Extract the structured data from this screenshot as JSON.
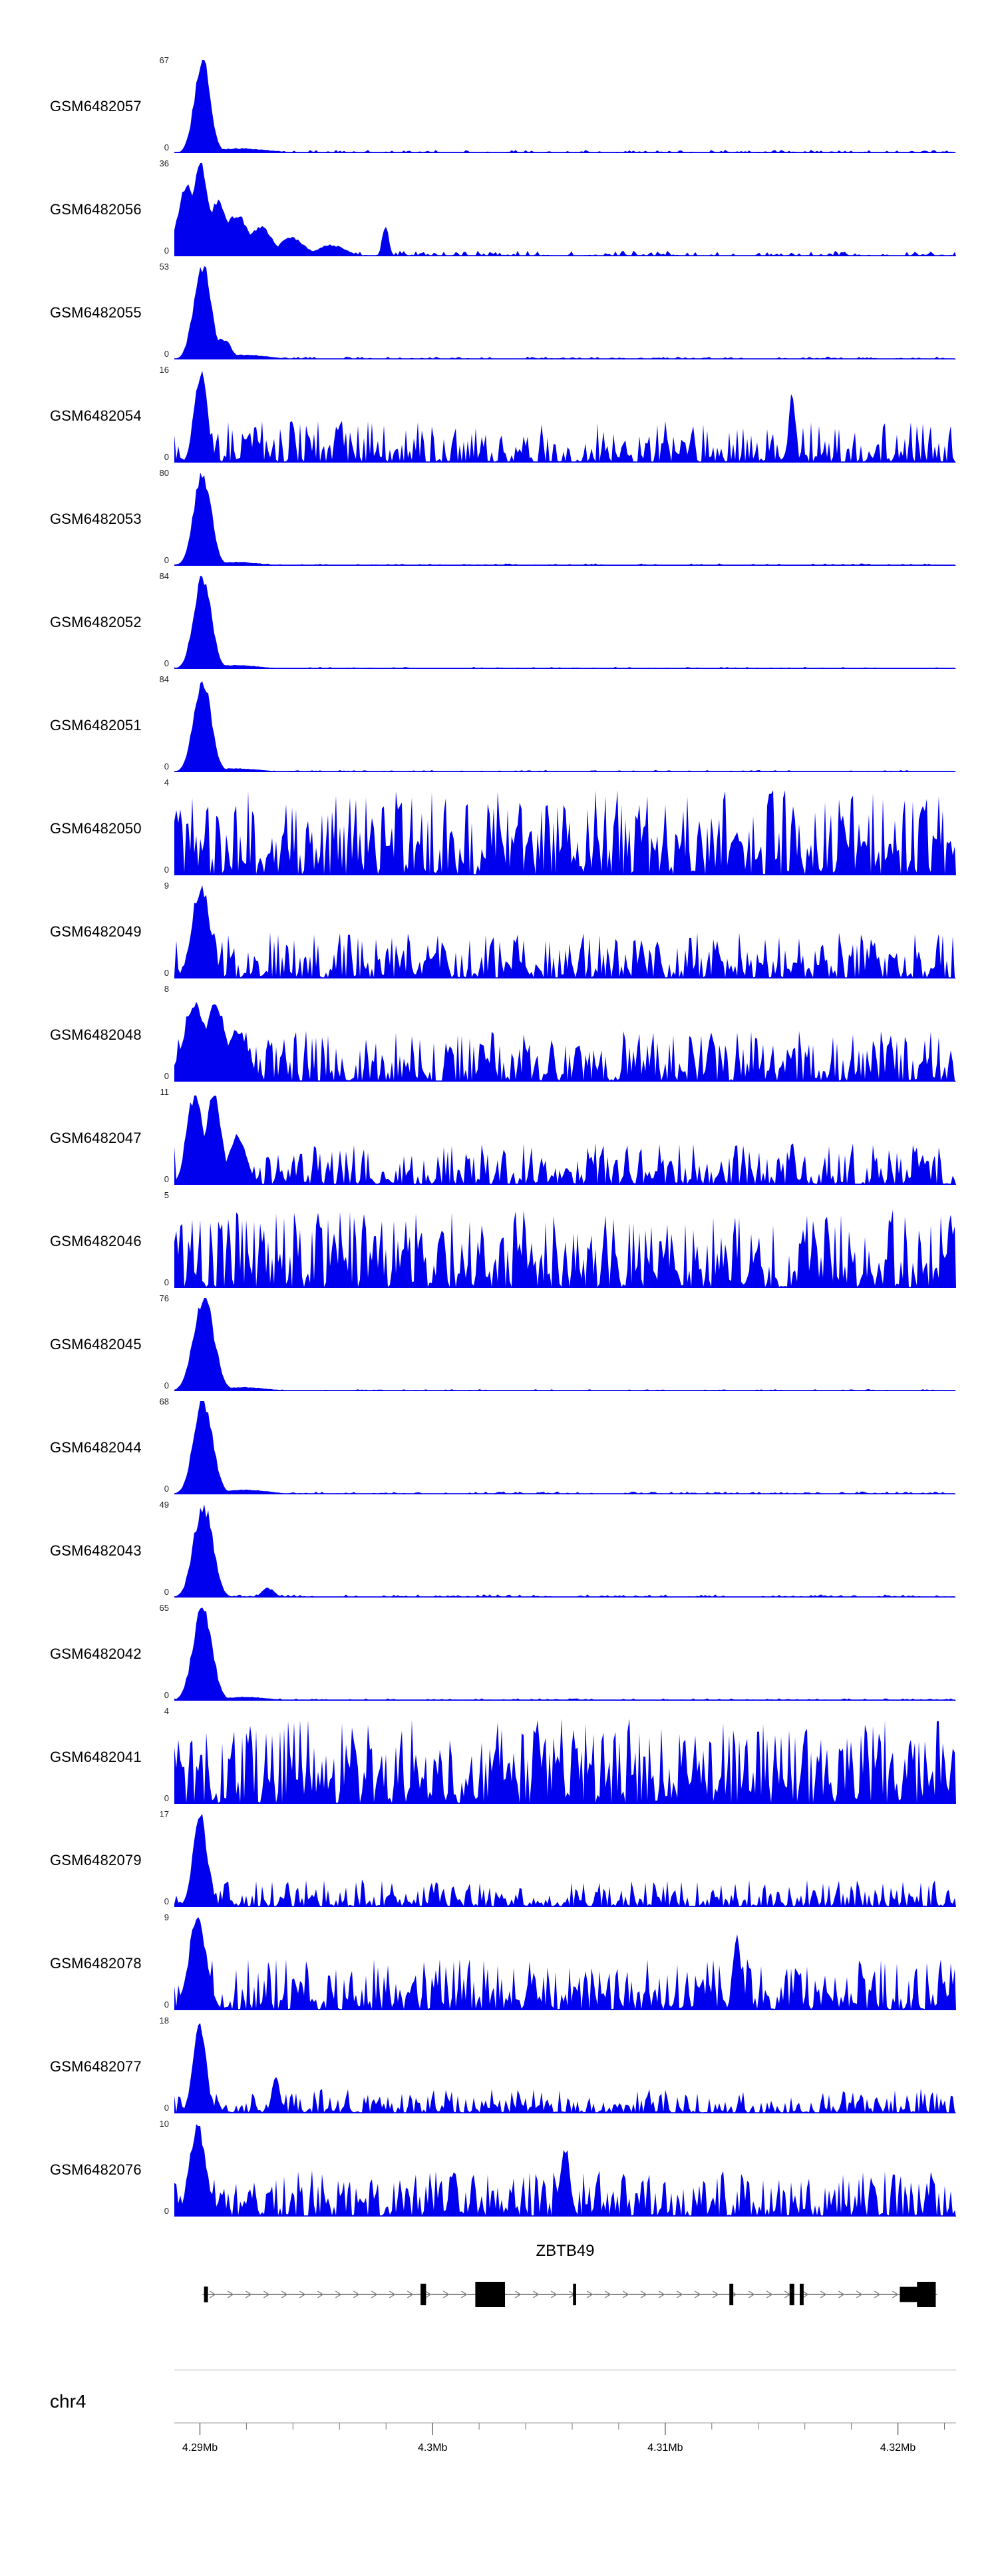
{
  "figure": {
    "gene_label": "ZBTB49",
    "chrom_label": "chr4"
  },
  "chart_data": {
    "type": "area",
    "title": "",
    "description": "Genome browser coverage signal tracks (blue filled area plots) for 21 GEO samples over the ZBTB49 locus on chr4, with a gene model track and a genomic coordinate ruler from 4.29Mb to 4.32Mb.",
    "signal_color": "#0000EE",
    "legend": "none",
    "grid": "off",
    "x_axis": {
      "chrom": "chr4",
      "unit": "Mb",
      "start_mb": 4.2889,
      "end_mb": 4.3225,
      "major_ticks_mb": [
        4.29,
        4.3,
        4.31,
        4.32
      ],
      "tick_labels": [
        "4.29Mb",
        "4.3Mb",
        "4.31Mb",
        "4.32Mb"
      ],
      "minor_tick_interval_mb": 0.002
    },
    "tracks": [
      {
        "label": "GSM6482057",
        "ymin": 0,
        "ymax": 67,
        "seed": 11,
        "noise": 0.035,
        "exp": 2.8,
        "peaks": [
          {
            "pos": 0.036,
            "h": 1,
            "w": 0.01
          },
          {
            "pos": 0.085,
            "h": 0.05,
            "w": 0.035
          }
        ]
      },
      {
        "label": "GSM6482056",
        "ymin": 0,
        "ymax": 36,
        "seed": 12,
        "noise": 0.06,
        "exp": 2.6,
        "peaks": [
          {
            "pos": 0.016,
            "h": 0.72,
            "w": 0.012
          },
          {
            "pos": 0.034,
            "h": 1,
            "w": 0.01
          },
          {
            "pos": 0.055,
            "h": 0.6,
            "w": 0.012
          },
          {
            "pos": 0.08,
            "h": 0.45,
            "w": 0.014
          },
          {
            "pos": 0.11,
            "h": 0.3,
            "w": 0.016
          },
          {
            "pos": 0.15,
            "h": 0.2,
            "w": 0.016
          },
          {
            "pos": 0.2,
            "h": 0.12,
            "w": 0.018
          },
          {
            "pos": 0.27,
            "h": 0.34,
            "w": 0.004
          }
        ]
      },
      {
        "label": "GSM6482055",
        "ymin": 0,
        "ymax": 53,
        "seed": 13,
        "noise": 0.03,
        "exp": 2.8,
        "peaks": [
          {
            "pos": 0.036,
            "h": 1,
            "w": 0.011
          },
          {
            "pos": 0.062,
            "h": 0.22,
            "w": 0.01
          },
          {
            "pos": 0.09,
            "h": 0.05,
            "w": 0.03
          }
        ]
      },
      {
        "label": "GSM6482054",
        "ymin": 0,
        "ymax": 16,
        "seed": 14,
        "noise": 0.45,
        "exp": 2.0,
        "peaks": [
          {
            "pos": 0.034,
            "h": 1,
            "w": 0.008
          },
          {
            "pos": 0.79,
            "h": 0.75,
            "w": 0.004
          }
        ]
      },
      {
        "label": "GSM6482053",
        "ymin": 0,
        "ymax": 80,
        "seed": 15,
        "noise": 0.025,
        "exp": 3,
        "peaks": [
          {
            "pos": 0.036,
            "h": 1,
            "w": 0.011
          },
          {
            "pos": 0.08,
            "h": 0.04,
            "w": 0.03
          }
        ]
      },
      {
        "label": "GSM6482052",
        "ymin": 0,
        "ymax": 84,
        "seed": 16,
        "noise": 0.022,
        "exp": 3,
        "peaks": [
          {
            "pos": 0.036,
            "h": 1,
            "w": 0.011
          },
          {
            "pos": 0.08,
            "h": 0.04,
            "w": 0.03
          }
        ]
      },
      {
        "label": "GSM6482051",
        "ymin": 0,
        "ymax": 84,
        "seed": 17,
        "noise": 0.022,
        "exp": 3,
        "peaks": [
          {
            "pos": 0.036,
            "h": 1,
            "w": 0.011
          },
          {
            "pos": 0.08,
            "h": 0.04,
            "w": 0.03
          }
        ]
      },
      {
        "label": "GSM6482050",
        "ymin": 0,
        "ymax": 4,
        "seed": 18,
        "noise": 0.92,
        "exp": 1.5,
        "peaks": []
      },
      {
        "label": "GSM6482049",
        "ymin": 0,
        "ymax": 9,
        "seed": 19,
        "noise": 0.5,
        "exp": 1.9,
        "peaks": [
          {
            "pos": 0.034,
            "h": 1,
            "w": 0.011
          }
        ]
      },
      {
        "label": "GSM6482048",
        "ymin": 0,
        "ymax": 8,
        "seed": 20,
        "noise": 0.55,
        "exp": 1.8,
        "peaks": [
          {
            "pos": 0.026,
            "h": 0.85,
            "w": 0.014
          },
          {
            "pos": 0.052,
            "h": 0.9,
            "w": 0.012
          },
          {
            "pos": 0.08,
            "h": 0.55,
            "w": 0.014
          }
        ]
      },
      {
        "label": "GSM6482047",
        "ymin": 0,
        "ymax": 11,
        "seed": 21,
        "noise": 0.45,
        "exp": 2.0,
        "peaks": [
          {
            "pos": 0.026,
            "h": 0.95,
            "w": 0.01
          },
          {
            "pos": 0.05,
            "h": 1,
            "w": 0.01
          },
          {
            "pos": 0.08,
            "h": 0.5,
            "w": 0.012
          }
        ]
      },
      {
        "label": "GSM6482046",
        "ymin": 0,
        "ymax": 5,
        "seed": 22,
        "noise": 0.85,
        "exp": 1.6,
        "peaks": []
      },
      {
        "label": "GSM6482045",
        "ymin": 0,
        "ymax": 76,
        "seed": 23,
        "noise": 0.022,
        "exp": 3,
        "peaks": [
          {
            "pos": 0.038,
            "h": 1,
            "w": 0.013
          },
          {
            "pos": 0.09,
            "h": 0.04,
            "w": 0.03
          }
        ]
      },
      {
        "label": "GSM6482044",
        "ymin": 0,
        "ymax": 68,
        "seed": 24,
        "noise": 0.03,
        "exp": 2.8,
        "peaks": [
          {
            "pos": 0.037,
            "h": 1,
            "w": 0.012
          },
          {
            "pos": 0.09,
            "h": 0.05,
            "w": 0.03
          }
        ]
      },
      {
        "label": "GSM6482043",
        "ymin": 0,
        "ymax": 49,
        "seed": 25,
        "noise": 0.035,
        "exp": 2.8,
        "peaks": [
          {
            "pos": 0.037,
            "h": 1,
            "w": 0.012
          },
          {
            "pos": 0.12,
            "h": 0.1,
            "w": 0.008
          }
        ]
      },
      {
        "label": "GSM6482042",
        "ymin": 0,
        "ymax": 65,
        "seed": 26,
        "noise": 0.025,
        "exp": 3,
        "peaks": [
          {
            "pos": 0.036,
            "h": 1,
            "w": 0.012
          },
          {
            "pos": 0.09,
            "h": 0.04,
            "w": 0.03
          }
        ]
      },
      {
        "label": "GSM6482041",
        "ymin": 0,
        "ymax": 4,
        "seed": 27,
        "noise": 0.92,
        "exp": 1.5,
        "peaks": []
      },
      {
        "label": "GSM6482079",
        "ymin": 0,
        "ymax": 17,
        "seed": 28,
        "noise": 0.3,
        "exp": 2.0,
        "peaks": [
          {
            "pos": 0.033,
            "h": 1,
            "w": 0.009
          }
        ]
      },
      {
        "label": "GSM6482078",
        "ymin": 0,
        "ymax": 9,
        "seed": 29,
        "noise": 0.55,
        "exp": 1.7,
        "peaks": [
          {
            "pos": 0.03,
            "h": 1,
            "w": 0.011
          },
          {
            "pos": 0.72,
            "h": 0.8,
            "w": 0.005
          }
        ]
      },
      {
        "label": "GSM6482077",
        "ymin": 0,
        "ymax": 18,
        "seed": 30,
        "noise": 0.27,
        "exp": 2.1,
        "peaks": [
          {
            "pos": 0.032,
            "h": 1,
            "w": 0.008
          },
          {
            "pos": 0.13,
            "h": 0.4,
            "w": 0.005
          }
        ]
      },
      {
        "label": "GSM6482076",
        "ymin": 0,
        "ymax": 10,
        "seed": 31,
        "noise": 0.5,
        "exp": 1.7,
        "peaks": [
          {
            "pos": 0.03,
            "h": 1,
            "w": 0.01
          },
          {
            "pos": 0.5,
            "h": 0.75,
            "w": 0.006
          }
        ]
      }
    ],
    "gene_track": {
      "gene": "ZBTB49",
      "direction": "right",
      "span": [
        0.036,
        0.976
      ],
      "exons": [
        {
          "x": 0.038,
          "w": 0.005,
          "h": 0.62
        },
        {
          "x": 0.315,
          "w": 0.007,
          "h": 0.85
        },
        {
          "x": 0.385,
          "w": 0.038,
          "h": 1.0
        },
        {
          "x": 0.51,
          "w": 0.004,
          "h": 0.85
        },
        {
          "x": 0.71,
          "w": 0.005,
          "h": 0.85
        },
        {
          "x": 0.787,
          "w": 0.006,
          "h": 0.85
        },
        {
          "x": 0.8,
          "w": 0.005,
          "h": 0.85
        },
        {
          "x": 0.928,
          "w": 0.03,
          "h": 0.6
        },
        {
          "x": 0.95,
          "w": 0.024,
          "h": 1.0
        }
      ]
    }
  }
}
